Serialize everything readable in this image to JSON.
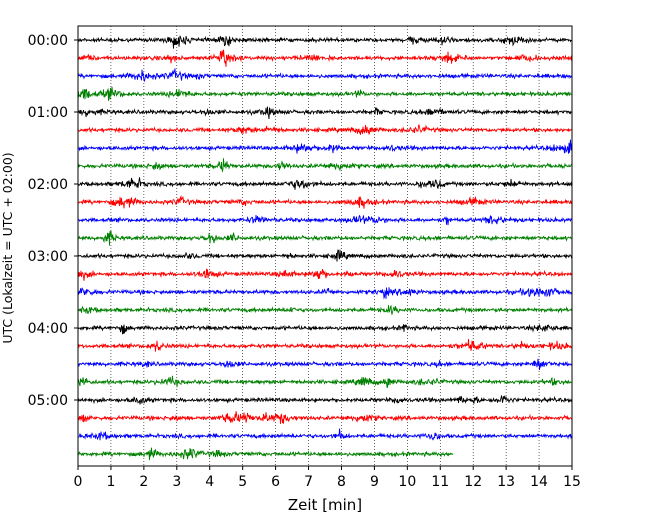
{
  "chart_data": {
    "type": "line",
    "title": "",
    "xlabel": "Zeit  [min]",
    "ylabel": "UTC (Lokalzeit = UTC + 02:00)",
    "xlim": [
      0,
      15
    ],
    "x_ticks": [
      "0",
      "1",
      "2",
      "3",
      "4",
      "5",
      "6",
      "7",
      "8",
      "9",
      "10",
      "11",
      "12",
      "13",
      "14",
      "15"
    ],
    "y_ticks": [
      "00:00",
      "01:00",
      "02:00",
      "03:00",
      "04:00",
      "05:00"
    ],
    "grid": "vertical dotted",
    "trace_interval_minutes": 15,
    "trace_colors": [
      "#000000",
      "#ff0000",
      "#0000ff",
      "#008000"
    ],
    "trace_count": 24,
    "last_trace_end_minute": 11.4
  }
}
